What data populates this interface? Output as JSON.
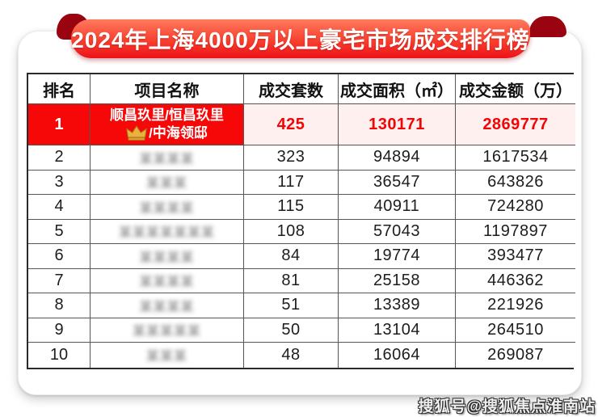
{
  "banner": {
    "title": "2024年上海4000万以上豪宅市场成交排行榜"
  },
  "colors": {
    "banner_red_top": "#ff7a5e",
    "banner_red_bottom": "#ee1118",
    "ribbon_fold_dark_red": "#9a0310",
    "highlight_row_red": "#f60808",
    "highlight_value_bg": "#fdf0ee",
    "highlight_value_red": "#f20506"
  },
  "table": {
    "headers": [
      "排名",
      "项目名称",
      "成交套数",
      "成交面积（㎡）",
      "成交金额（万）"
    ],
    "rows": [
      {
        "rank": "1",
        "name": "顺昌玖里/恒昌玖里",
        "name_line2": "/中海领邸",
        "has_crown": true,
        "units": "425",
        "area": "130171",
        "amount": "2869777",
        "highlight": true
      },
      {
        "rank": "2",
        "name_blurred": "某某某某",
        "units": "323",
        "area": "94894",
        "amount": "1617534"
      },
      {
        "rank": "3",
        "name_blurred": "某某某",
        "units": "117",
        "area": "36547",
        "amount": "643826"
      },
      {
        "rank": "4",
        "name_blurred": "某某某某",
        "units": "115",
        "area": "40911",
        "amount": "724280"
      },
      {
        "rank": "5",
        "name_blurred": "某某某某某某某",
        "units": "108",
        "area": "57043",
        "amount": "1197897"
      },
      {
        "rank": "6",
        "name_blurred": "某某某某",
        "units": "84",
        "area": "19774",
        "amount": "393477"
      },
      {
        "rank": "7",
        "name_blurred": "某某某某",
        "units": "81",
        "area": "25158",
        "amount": "446362"
      },
      {
        "rank": "8",
        "name_blurred": "某某某某",
        "units": "51",
        "area": "13389",
        "amount": "221926"
      },
      {
        "rank": "9",
        "name_blurred": "某某某某某",
        "units": "50",
        "area": "13104",
        "amount": "264510"
      },
      {
        "rank": "10",
        "name_blurred": "某某某",
        "units": "48",
        "area": "16064",
        "amount": "269087"
      }
    ]
  },
  "watermark": {
    "text": "搜狐号@搜狐焦点淮南站"
  }
}
